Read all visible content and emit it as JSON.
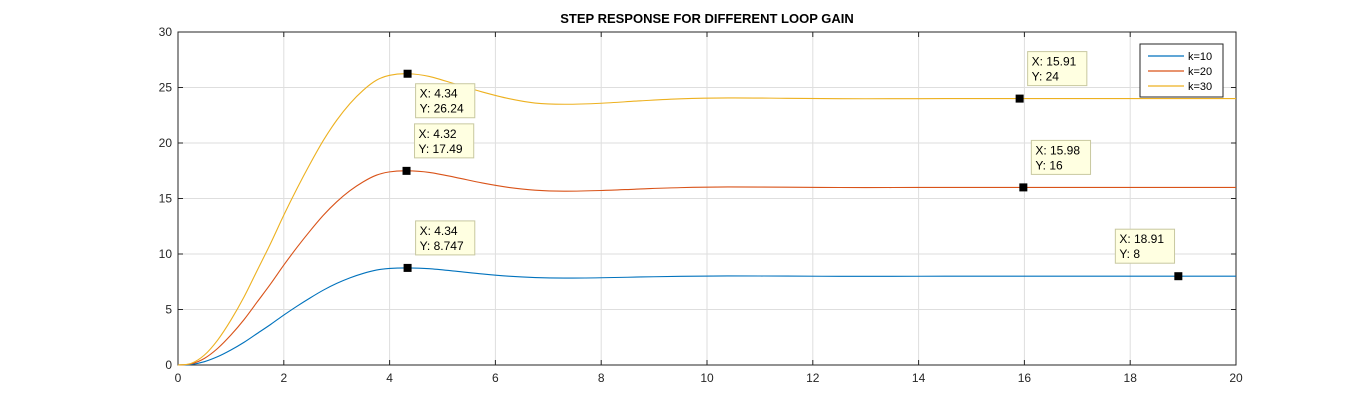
{
  "chart_data": {
    "type": "line",
    "title": "STEP RESPONSE FOR DIFFERENT LOOP GAIN",
    "xlabel": "",
    "ylabel": "",
    "xlim": [
      0,
      20
    ],
    "ylim": [
      0,
      30
    ],
    "x_ticks": [
      0,
      2,
      4,
      6,
      8,
      10,
      12,
      14,
      16,
      18,
      20
    ],
    "y_ticks": [
      0,
      5,
      10,
      15,
      20,
      25,
      30
    ],
    "grid": true,
    "legend_position": "top-right",
    "series": [
      {
        "name": "k=10",
        "color": "#0072BD",
        "x": [
          0,
          0.25,
          0.5,
          0.75,
          1,
          1.25,
          1.5,
          1.75,
          2,
          2.25,
          2.5,
          2.75,
          3,
          3.25,
          3.5,
          3.75,
          4,
          4.34,
          4.75,
          5.25,
          5.75,
          6.25,
          6.75,
          7.3,
          8,
          8.75,
          9.5,
          10.4,
          11.5,
          12.5,
          13.5,
          14.5,
          15.5,
          16.5,
          17.5,
          18.91,
          20
        ],
        "y": [
          0,
          0.05,
          0.3,
          0.75,
          1.35,
          2.05,
          2.85,
          3.65,
          4.5,
          5.3,
          6.05,
          6.75,
          7.35,
          7.85,
          8.25,
          8.55,
          8.7,
          8.747,
          8.68,
          8.45,
          8.2,
          8.0,
          7.88,
          7.83,
          7.86,
          7.93,
          7.99,
          8.02,
          8.01,
          7.99,
          7.99,
          8.0,
          8.0,
          8.0,
          8.0,
          8.0,
          8.0
        ]
      },
      {
        "name": "k=20",
        "color": "#D95319",
        "x": [
          0,
          0.25,
          0.5,
          0.75,
          1,
          1.25,
          1.5,
          1.75,
          2,
          2.25,
          2.5,
          2.75,
          3,
          3.25,
          3.5,
          3.75,
          4,
          4.32,
          4.75,
          5.25,
          5.75,
          6.25,
          6.75,
          7.3,
          8,
          8.75,
          9.5,
          10.4,
          11.5,
          12.5,
          13.5,
          14.5,
          15.5,
          15.98,
          17,
          18.5,
          20
        ],
        "y": [
          0,
          0.1,
          0.6,
          1.5,
          2.7,
          4.1,
          5.7,
          7.3,
          9.0,
          10.6,
          12.1,
          13.5,
          14.7,
          15.7,
          16.5,
          17.1,
          17.4,
          17.49,
          17.35,
          16.9,
          16.4,
          16.0,
          15.75,
          15.66,
          15.72,
          15.86,
          15.98,
          16.04,
          16.02,
          15.99,
          15.99,
          16.0,
          16.0,
          16.0,
          16.0,
          16.0,
          16.0
        ]
      },
      {
        "name": "k=30",
        "color": "#EDB120",
        "x": [
          0,
          0.25,
          0.5,
          0.75,
          1,
          1.25,
          1.5,
          1.75,
          2,
          2.25,
          2.5,
          2.75,
          3,
          3.25,
          3.5,
          3.75,
          4,
          4.34,
          4.75,
          5.25,
          5.75,
          6.25,
          6.75,
          7.3,
          8,
          8.75,
          9.5,
          10.4,
          11.5,
          12.5,
          13.5,
          14.5,
          15.5,
          15.91,
          17,
          18.5,
          20
        ],
        "y": [
          0,
          0.15,
          0.9,
          2.25,
          4.05,
          6.15,
          8.55,
          10.95,
          13.5,
          15.9,
          18.15,
          20.25,
          22.05,
          23.55,
          24.75,
          25.65,
          26.1,
          26.24,
          26.0,
          25.3,
          24.6,
          24.0,
          23.6,
          23.49,
          23.58,
          23.8,
          23.98,
          24.06,
          24.03,
          23.99,
          23.99,
          24.0,
          24.0,
          24.0,
          24.0,
          24.0,
          24.0
        ]
      }
    ],
    "datatips": [
      {
        "x": 4.34,
        "y": 26.24,
        "line1": "X: 4.34",
        "line2": "Y: 26.24",
        "placement": "below-right"
      },
      {
        "x": 15.91,
        "y": 24,
        "line1": "X: 15.91",
        "line2": "Y: 24",
        "placement": "above-right"
      },
      {
        "x": 4.32,
        "y": 17.49,
        "line1": "X: 4.32",
        "line2": "Y: 17.49",
        "placement": "above-right"
      },
      {
        "x": 15.98,
        "y": 16,
        "line1": "X: 15.98",
        "line2": "Y: 16",
        "placement": "above-right"
      },
      {
        "x": 4.34,
        "y": 8.747,
        "line1": "X: 4.34",
        "line2": "Y: 8.747",
        "placement": "above-right"
      },
      {
        "x": 18.91,
        "y": 8,
        "line1": "X: 18.91",
        "line2": "Y: 8",
        "placement": "above-left"
      }
    ]
  },
  "colors": {
    "background": "#ffffff",
    "axes_box": "#262626",
    "grid": "#dedede",
    "datatip_fill": "#ffffe1",
    "datatip_border": "#c8c8a0",
    "marker": "#000000"
  }
}
